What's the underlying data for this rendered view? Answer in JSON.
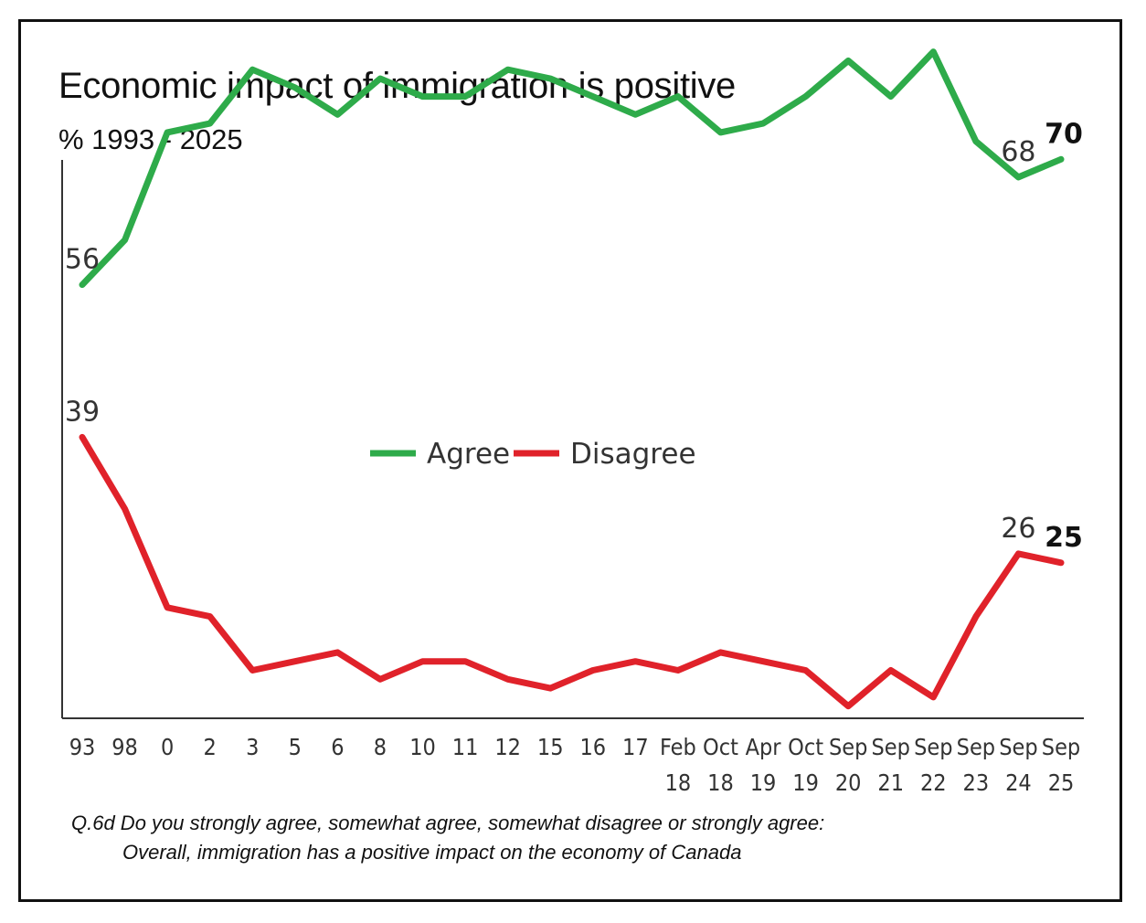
{
  "chart_data": {
    "type": "line",
    "title": "Economic impact of immigration is positive",
    "subtitle": "%  1993 - 2025",
    "categories": [
      [
        "93"
      ],
      [
        "98"
      ],
      [
        "0"
      ],
      [
        "2"
      ],
      [
        "3"
      ],
      [
        "5"
      ],
      [
        "6"
      ],
      [
        "8"
      ],
      [
        "10"
      ],
      [
        "11"
      ],
      [
        "12"
      ],
      [
        "15"
      ],
      [
        "16"
      ],
      [
        "17"
      ],
      [
        "Feb",
        "18"
      ],
      [
        "Oct",
        "18"
      ],
      [
        "Apr",
        "19"
      ],
      [
        "Oct",
        "19"
      ],
      [
        "Sep",
        "20"
      ],
      [
        "Sep",
        "21"
      ],
      [
        "Sep",
        "22"
      ],
      [
        "Sep",
        "23"
      ],
      [
        "Sep",
        "24"
      ],
      [
        "Sep",
        "25"
      ]
    ],
    "series": [
      {
        "name": "Agree",
        "color": "#2eab4a",
        "values": [
          56,
          61,
          73,
          74,
          80,
          78,
          75,
          79,
          77,
          77,
          80,
          79,
          77,
          75,
          77,
          73,
          74,
          77,
          81,
          77,
          82,
          72,
          68,
          70
        ]
      },
      {
        "name": "Disagree",
        "color": "#e0222a",
        "values": [
          39,
          31,
          20,
          19,
          13,
          14,
          15,
          12,
          14,
          14,
          12,
          11,
          13,
          14,
          13,
          15,
          14,
          13,
          9,
          13,
          10,
          19,
          26,
          25
        ]
      }
    ],
    "annotations": [
      {
        "series": 0,
        "index": 0,
        "text": "56",
        "bold": false
      },
      {
        "series": 0,
        "index": 22,
        "text": "68",
        "bold": false
      },
      {
        "series": 0,
        "index": 23,
        "text": "70",
        "bold": true
      },
      {
        "series": 1,
        "index": 0,
        "text": "39",
        "bold": false
      },
      {
        "series": 1,
        "index": 22,
        "text": "26",
        "bold": false
      },
      {
        "series": 1,
        "index": 23,
        "text": "25",
        "bold": true
      }
    ],
    "legend": [
      {
        "name": "Agree",
        "color": "#2eab4a"
      },
      {
        "name": "Disagree",
        "color": "#e0222a"
      }
    ],
    "ylim": [
      0,
      100
    ],
    "xlabel": "",
    "ylabel": "",
    "grid": false,
    "legend_position": "center"
  },
  "footnote": {
    "line1": "Q.6d  Do you strongly agree, somewhat agree, somewhat disagree or strongly agree:",
    "line2": "Overall, immigration has a positive impact on the economy of Canada"
  }
}
